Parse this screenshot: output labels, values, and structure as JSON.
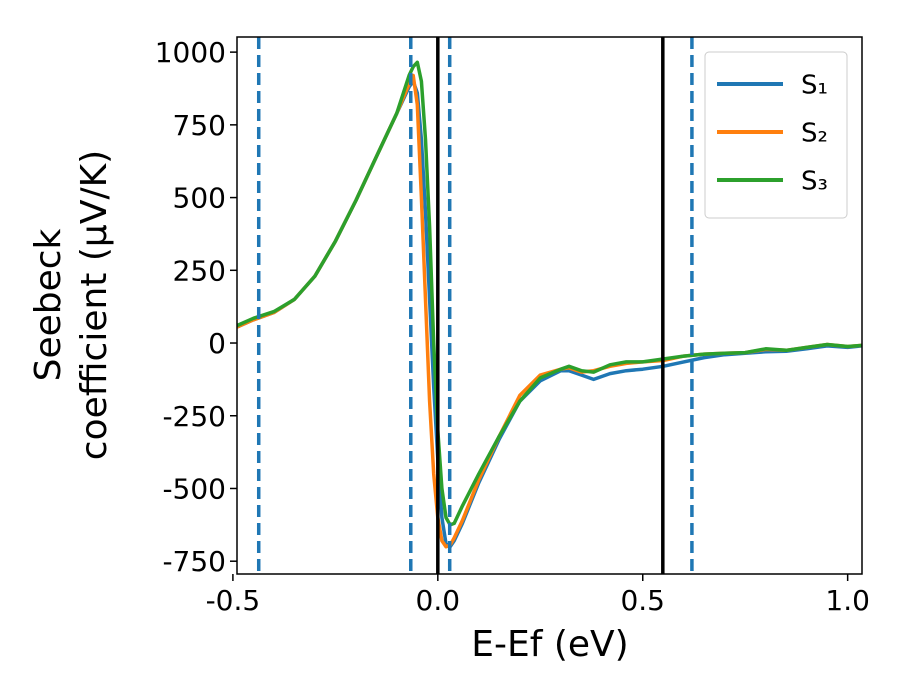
{
  "chart_data": {
    "type": "line",
    "xlabel": "E-Ef (eV)",
    "ylabel": [
      "Seebeck",
      "coefficient  (μV/K)"
    ],
    "xlim": [
      -0.49,
      1.035
    ],
    "ylim": [
      -794,
      1052
    ],
    "xticks": [
      -0.5,
      {
        "value": 0,
        "label": "0.0"
      },
      0.5,
      {
        "value": 1,
        "label": "1.0"
      }
    ],
    "yticks": [
      -750,
      -500,
      -250,
      0,
      250,
      500,
      750,
      1000
    ],
    "grid": false,
    "legend": "upper right",
    "x": [
      -0.49,
      -0.45,
      -0.4,
      -0.35,
      -0.3,
      -0.25,
      -0.2,
      -0.15,
      -0.1,
      -0.07,
      -0.06,
      -0.05,
      -0.04,
      -0.03,
      -0.02,
      -0.01,
      0,
      0.01,
      0.02,
      0.03,
      0.04,
      0.06,
      0.1,
      0.15,
      0.2,
      0.25,
      0.3,
      0.32,
      0.35,
      0.38,
      0.42,
      0.46,
      0.5,
      0.55,
      0.6,
      0.65,
      0.7,
      0.75,
      0.8,
      0.85,
      0.9,
      0.95,
      1.0,
      1.035
    ],
    "series": [
      {
        "name": "S₁",
        "color": "#1f77b4",
        "values": [
          55,
          80,
          105,
          150,
          230,
          350,
          490,
          640,
          790,
          880,
          900,
          860,
          700,
          450,
          150,
          -150,
          -400,
          -600,
          -690,
          -700,
          -680,
          -620,
          -480,
          -330,
          -200,
          -130,
          -95,
          -95,
          -110,
          -125,
          -105,
          -95,
          -90,
          -80,
          -65,
          -50,
          -40,
          -35,
          -30,
          -28,
          -20,
          -10,
          -15,
          -10
        ]
      },
      {
        "name": "S₂",
        "color": "#ff7f0e",
        "values": [
          55,
          80,
          105,
          150,
          230,
          350,
          490,
          640,
          790,
          890,
          920,
          820,
          500,
          150,
          -200,
          -450,
          -600,
          -680,
          -700,
          -695,
          -670,
          -610,
          -470,
          -320,
          -180,
          -110,
          -90,
          -85,
          -100,
          -95,
          -80,
          -70,
          -65,
          -60,
          -45,
          -38,
          -35,
          -33,
          -22,
          -25,
          -15,
          -5,
          -12,
          -8
        ]
      },
      {
        "name": "S₃",
        "color": "#2ca02c",
        "values": [
          60,
          85,
          108,
          150,
          230,
          350,
          490,
          640,
          790,
          920,
          950,
          965,
          900,
          700,
          400,
          0,
          -300,
          -500,
          -600,
          -625,
          -620,
          -560,
          -450,
          -320,
          -200,
          -120,
          -90,
          -80,
          -95,
          -100,
          -75,
          -65,
          -65,
          -55,
          -45,
          -38,
          -35,
          -33,
          -20,
          -25,
          -15,
          -5,
          -12,
          -8
        ]
      }
    ],
    "vlines": [
      {
        "x": -0.437,
        "color": "#1f77b4",
        "style": "dashed"
      },
      {
        "x": -0.066,
        "color": "#1f77b4",
        "style": "dashed"
      },
      {
        "x": 0.029,
        "color": "#1f77b4",
        "style": "dashed"
      },
      {
        "x": 0.62,
        "color": "#1f77b4",
        "style": "dashed"
      },
      {
        "x": 0,
        "color": "#000000",
        "style": "solid"
      },
      {
        "x": 0.549,
        "color": "#000000",
        "style": "solid"
      }
    ]
  }
}
